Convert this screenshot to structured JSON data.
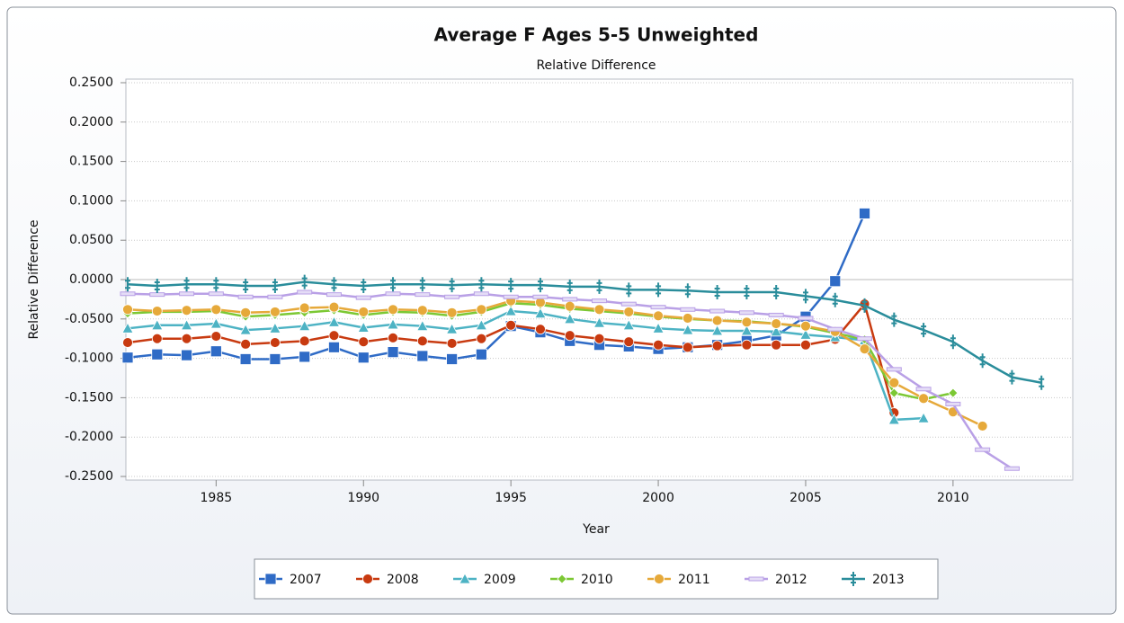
{
  "chart_data": {
    "type": "line",
    "title": "Average F Ages 5-5 Unweighted",
    "subtitle": "Relative Difference",
    "xlabel": "Year",
    "ylabel": "Relative Difference",
    "x": [
      1982,
      1983,
      1984,
      1985,
      1986,
      1987,
      1988,
      1989,
      1990,
      1991,
      1992,
      1993,
      1994,
      1995,
      1996,
      1997,
      1998,
      1999,
      2000,
      2001,
      2002,
      2003,
      2004,
      2005,
      2006,
      2007,
      2008,
      2009,
      2010,
      2011,
      2012,
      2013
    ],
    "xlim": [
      1982,
      2014
    ],
    "xticks": [
      1985,
      1990,
      1995,
      2000,
      2005,
      2010
    ],
    "ylim": [
      -0.25,
      0.25
    ],
    "yticks": [
      {
        "value": -0.25,
        "label": "-0.2500"
      },
      {
        "value": -0.2,
        "label": "-0.2000"
      },
      {
        "value": -0.15,
        "label": "-0.1500"
      },
      {
        "value": -0.1,
        "label": "-0.1000"
      },
      {
        "value": -0.05,
        "label": "-0.0500"
      },
      {
        "value": 0,
        "label": "0.0000"
      },
      {
        "value": 0.05,
        "label": "0.0500"
      },
      {
        "value": 0.1,
        "label": "0.1000"
      },
      {
        "value": 0.15,
        "label": "0.1500"
      },
      {
        "value": 0.2,
        "label": "0.2000"
      },
      {
        "value": 0.25,
        "label": "0.2500"
      }
    ],
    "grid": true,
    "legend": "bottom",
    "series": [
      {
        "name": "2007",
        "color": "#2f6bc6",
        "marker": "square",
        "values": [
          -0.099,
          -0.095,
          -0.096,
          -0.091,
          -0.101,
          -0.101,
          -0.098,
          -0.086,
          -0.099,
          -0.092,
          -0.097,
          -0.101,
          -0.095,
          -0.059,
          -0.067,
          -0.078,
          -0.083,
          -0.085,
          -0.088,
          -0.086,
          -0.083,
          -0.078,
          -0.071,
          -0.047,
          -0.002,
          0.084,
          null,
          null,
          null,
          null,
          null,
          null
        ]
      },
      {
        "name": "2008",
        "color": "#c83a10",
        "marker": "circle",
        "values": [
          -0.08,
          -0.075,
          -0.075,
          -0.072,
          -0.082,
          -0.08,
          -0.078,
          -0.071,
          -0.079,
          -0.074,
          -0.078,
          -0.081,
          -0.075,
          -0.058,
          -0.063,
          -0.071,
          -0.075,
          -0.079,
          -0.083,
          -0.086,
          -0.084,
          -0.083,
          -0.083,
          -0.083,
          -0.076,
          -0.031,
          -0.169,
          null,
          null,
          null,
          null,
          null
        ]
      },
      {
        "name": "2009",
        "color": "#4db3c4",
        "marker": "triangle",
        "values": [
          -0.062,
          -0.058,
          -0.058,
          -0.056,
          -0.064,
          -0.062,
          -0.059,
          -0.054,
          -0.061,
          -0.057,
          -0.059,
          -0.063,
          -0.058,
          -0.04,
          -0.043,
          -0.05,
          -0.055,
          -0.058,
          -0.062,
          -0.064,
          -0.065,
          -0.065,
          -0.066,
          -0.07,
          -0.073,
          -0.077,
          -0.178,
          -0.176,
          null,
          null,
          null,
          null
        ]
      },
      {
        "name": "2010",
        "color": "#7cc834",
        "marker": "diamond",
        "values": [
          -0.043,
          -0.041,
          -0.041,
          -0.04,
          -0.047,
          -0.045,
          -0.042,
          -0.039,
          -0.045,
          -0.041,
          -0.042,
          -0.046,
          -0.041,
          -0.03,
          -0.032,
          -0.037,
          -0.04,
          -0.043,
          -0.047,
          -0.05,
          -0.052,
          -0.053,
          -0.056,
          -0.06,
          -0.068,
          -0.076,
          -0.144,
          -0.152,
          -0.144,
          null,
          null,
          null
        ]
      },
      {
        "name": "2011",
        "color": "#e6a93a",
        "marker": "circle",
        "values": [
          -0.038,
          -0.04,
          -0.039,
          -0.038,
          -0.042,
          -0.041,
          -0.036,
          -0.035,
          -0.041,
          -0.038,
          -0.039,
          -0.042,
          -0.038,
          -0.027,
          -0.029,
          -0.034,
          -0.038,
          -0.041,
          -0.046,
          -0.049,
          -0.052,
          -0.054,
          -0.056,
          -0.059,
          -0.066,
          -0.088,
          -0.131,
          -0.151,
          -0.168,
          -0.186,
          null,
          null
        ]
      },
      {
        "name": "2012",
        "color": "#b9a0e6",
        "marker": "dash",
        "values": [
          -0.018,
          -0.019,
          -0.018,
          -0.018,
          -0.022,
          -0.022,
          -0.016,
          -0.019,
          -0.023,
          -0.018,
          -0.019,
          -0.022,
          -0.018,
          -0.022,
          -0.022,
          -0.025,
          -0.027,
          -0.031,
          -0.035,
          -0.038,
          -0.04,
          -0.042,
          -0.045,
          -0.049,
          -0.063,
          -0.075,
          -0.114,
          -0.139,
          -0.158,
          -0.216,
          -0.24,
          null
        ]
      },
      {
        "name": "2013",
        "color": "#2a8d9b",
        "marker": "bar",
        "values": [
          -0.006,
          -0.008,
          -0.006,
          -0.006,
          -0.008,
          -0.008,
          -0.003,
          -0.006,
          -0.008,
          -0.006,
          -0.006,
          -0.007,
          -0.006,
          -0.007,
          -0.007,
          -0.009,
          -0.009,
          -0.013,
          -0.013,
          -0.014,
          -0.016,
          -0.016,
          -0.016,
          -0.021,
          -0.026,
          -0.033,
          -0.051,
          -0.064,
          -0.079,
          -0.103,
          -0.124,
          -0.131
        ]
      }
    ]
  }
}
